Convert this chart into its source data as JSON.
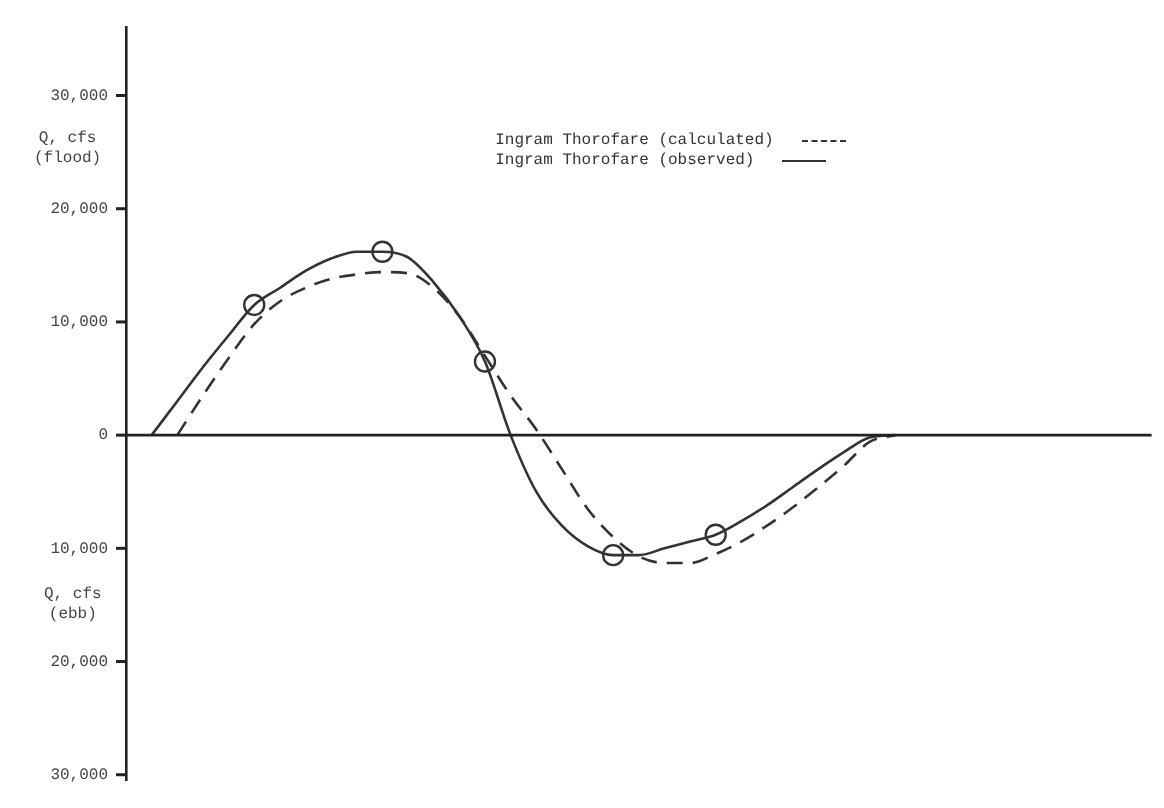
{
  "chart_data": {
    "type": "line",
    "ylabel": "Q, cfs (flood)",
    "annotations": [
      "Q, cfs (ebb)"
    ],
    "categories": [
      null,
      null,
      null,
      null,
      null,
      null,
      null,
      null,
      null,
      null,
      null,
      null,
      null,
      null,
      null,
      null,
      null,
      null,
      null,
      null,
      null,
      null,
      null,
      null,
      null,
      null,
      null,
      null,
      null,
      null,
      null,
      null,
      null,
      null,
      null,
      null,
      null,
      null,
      null,
      null,
      null
    ],
    "series": [
      {
        "name": "Ingram Thorofare (calculated)",
        "color": "#333333",
        "line_style": "dashed",
        "marker": "none",
        "values": [
          null,
          null,
          0,
          3500,
          6800,
          9800,
          11800,
          13000,
          13800,
          14200,
          14400,
          14300,
          13000,
          10500,
          7000,
          3500,
          500,
          -3000,
          -6500,
          -9000,
          -10700,
          -11300,
          -11300,
          -10500,
          -9400,
          -8000,
          -6400,
          -4600,
          -2700,
          -600,
          0,
          null,
          null,
          null,
          null,
          null,
          null,
          null,
          null,
          null,
          null
        ]
      },
      {
        "name": "Ingram Thorofare (observed)",
        "color": "#333333",
        "line_style": "solid",
        "marker": "none",
        "values": [
          null,
          0,
          3000,
          6000,
          8800,
          11500,
          13000,
          14500,
          15600,
          16200,
          16200,
          15700,
          13500,
          10500,
          6500,
          0,
          -5000,
          -8000,
          -9800,
          -10600,
          -10600,
          -10000,
          -9400,
          -8800,
          -7600,
          -6200,
          -4600,
          -3000,
          -1500,
          -200,
          0,
          null,
          null,
          null,
          null,
          null,
          null,
          null,
          null,
          null,
          null
        ]
      },
      {
        "type": "scatter",
        "color": "#333333",
        "marker": "circle",
        "values": [
          null,
          null,
          null,
          null,
          null,
          11500,
          null,
          null,
          null,
          null,
          16200,
          null,
          null,
          null,
          6500,
          null,
          null,
          null,
          null,
          -10600,
          null,
          null,
          null,
          -8800,
          null,
          null,
          null,
          null,
          null,
          null,
          null,
          null,
          null,
          null,
          null,
          null,
          null,
          null,
          null,
          null,
          null
        ]
      }
    ],
    "ylim": [
      -30500,
      36000
    ],
    "yticks": [
      {
        "value": -30000,
        "label": "30,000"
      },
      {
        "value": -20000,
        "label": "20,000"
      },
      {
        "value": -10000,
        "label": "10,000"
      },
      0,
      {
        "value": 10000,
        "label": "10,000"
      },
      {
        "value": 20000,
        "label": "20,000"
      },
      {
        "value": 30000,
        "label": "30,000"
      }
    ],
    "tick_labels": "y",
    "grid": false,
    "ref_lines": [
      {
        "axis": "y",
        "value": 0,
        "color": "#222222"
      }
    ],
    "legend": "top right"
  }
}
